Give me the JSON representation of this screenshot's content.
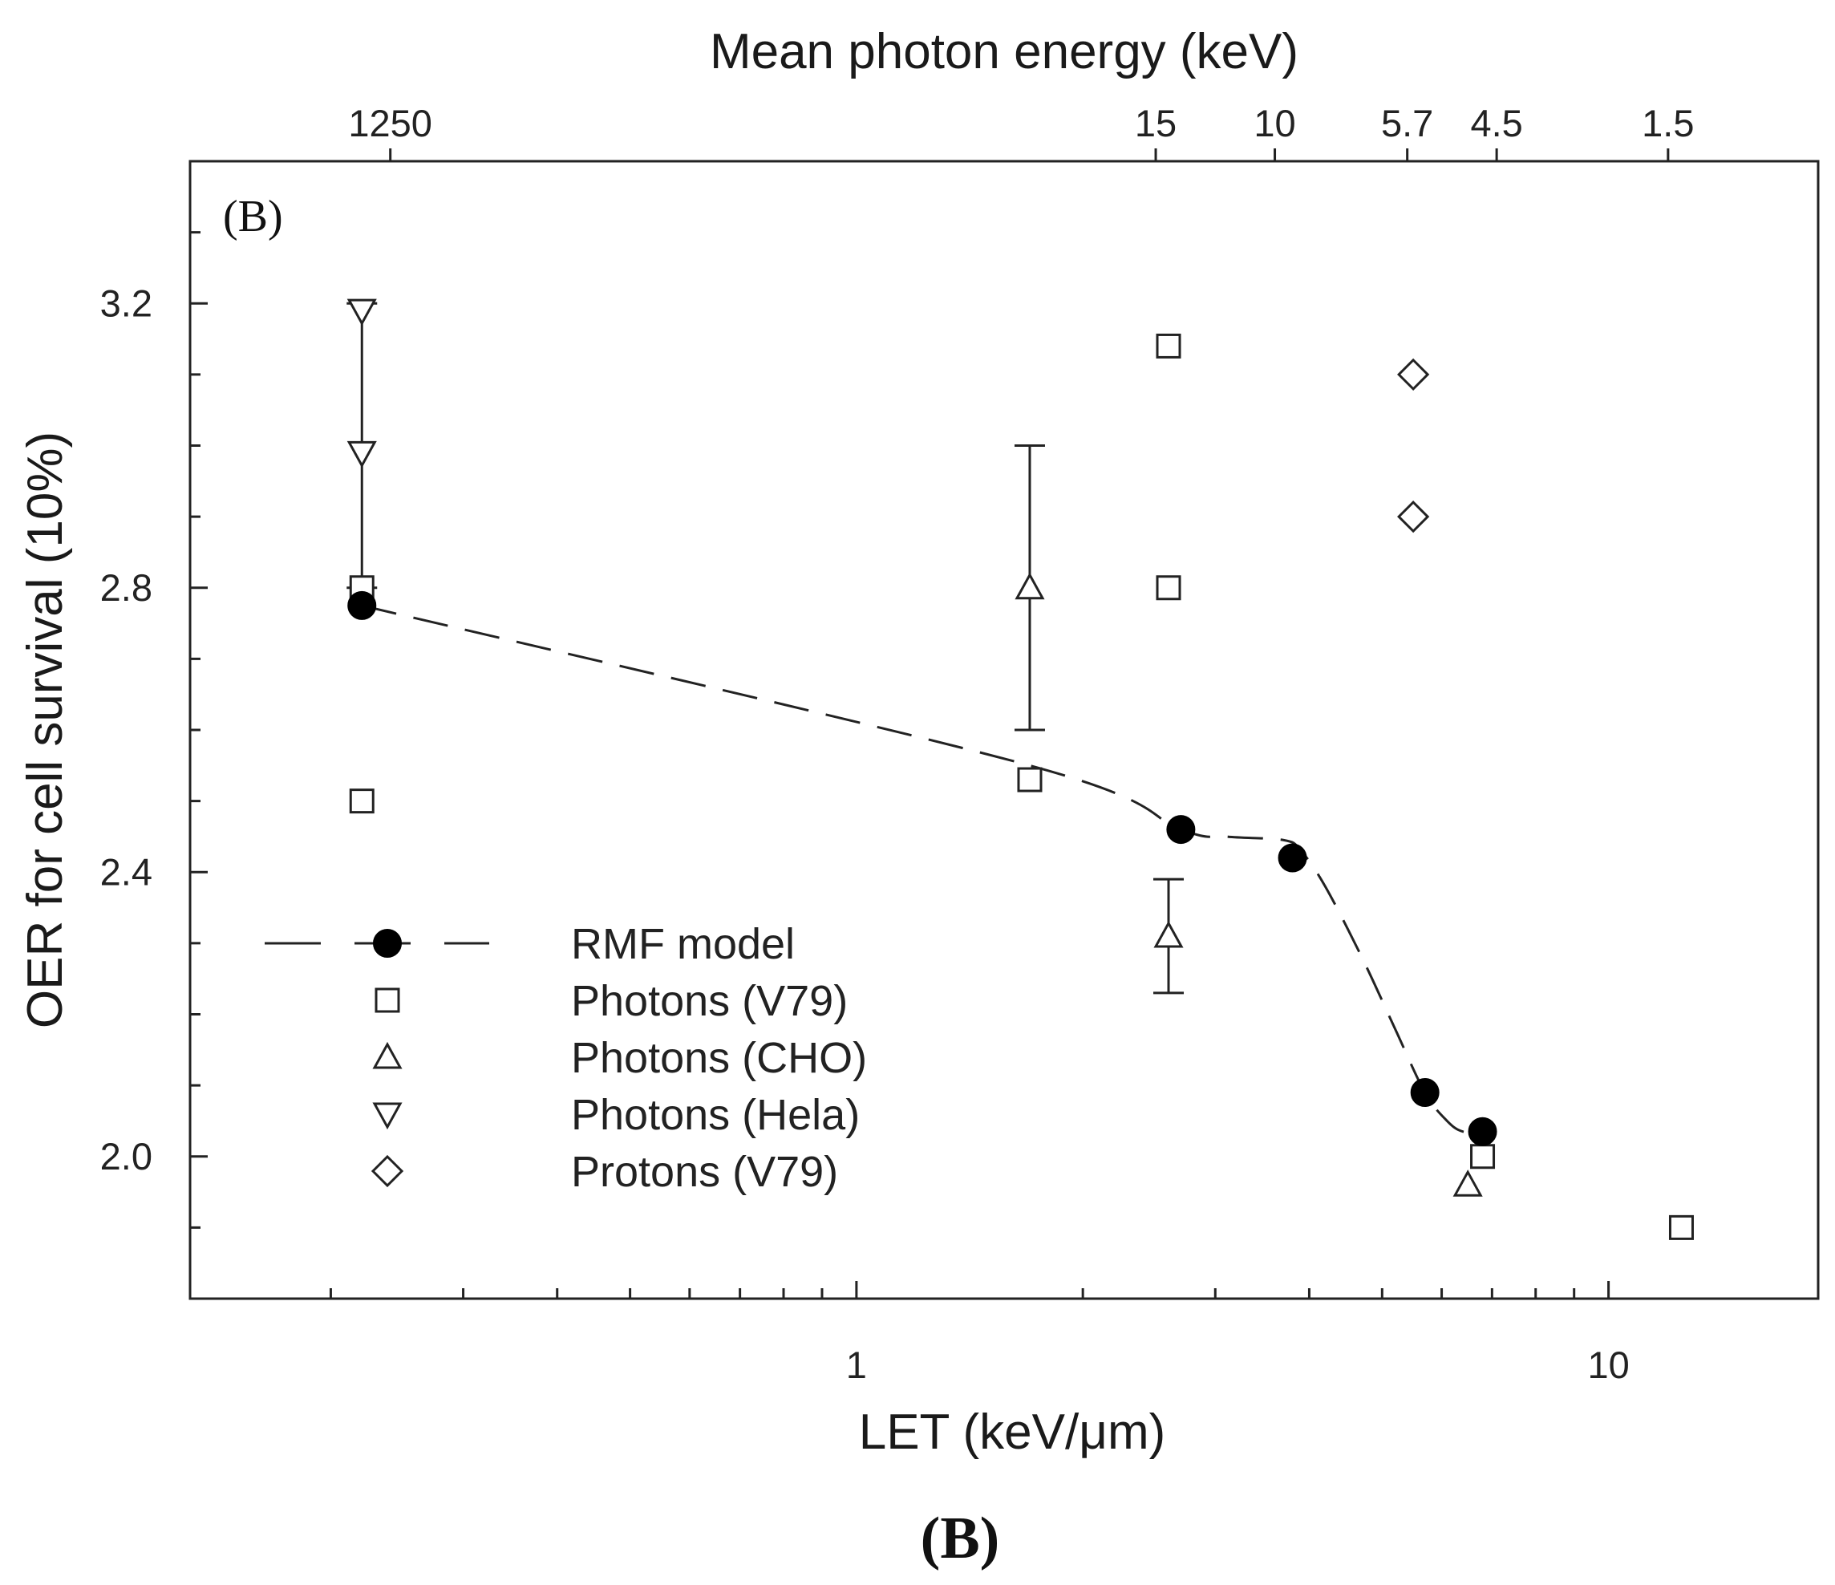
{
  "chart_data": {
    "type": "scatter",
    "panel_label": "(B)",
    "caption": "(B)",
    "xlabel": "LET (keV/μm)",
    "ylabel": "OER for cell survival (10%)",
    "top_axis_title": "Mean photon energy (keV)",
    "x_scale": "log",
    "xlim": [
      0.13,
      19
    ],
    "ylim": [
      1.8,
      3.4
    ],
    "x_ticks": [
      {
        "value": 1,
        "label": "1"
      },
      {
        "value": 10,
        "label": "10"
      }
    ],
    "y_ticks": [
      {
        "value": 2.0,
        "label": "2.0"
      },
      {
        "value": 2.4,
        "label": "2.4"
      },
      {
        "value": 2.8,
        "label": "2.8"
      },
      {
        "value": 3.2,
        "label": "3.2"
      }
    ],
    "top_ticks": [
      {
        "let": 0.24,
        "label": "1250"
      },
      {
        "let": 2.5,
        "label": "15"
      },
      {
        "let": 3.6,
        "label": "10"
      },
      {
        "let": 5.4,
        "label": "5.7"
      },
      {
        "let": 7.1,
        "label": "4.5"
      },
      {
        "let": 12.0,
        "label": "1.5"
      }
    ],
    "series": [
      {
        "name": "RMF model",
        "marker": "filled-circle",
        "line": "dashed",
        "points": [
          {
            "x": 0.22,
            "y": 2.775
          },
          {
            "x": 2.7,
            "y": 2.46
          },
          {
            "x": 3.8,
            "y": 2.42
          },
          {
            "x": 5.7,
            "y": 2.09
          },
          {
            "x": 6.8,
            "y": 2.035
          }
        ],
        "curve": [
          [
            0.22,
            2.775
          ],
          [
            1.7,
            2.55
          ],
          [
            2.7,
            2.46
          ],
          [
            3.1,
            2.45
          ],
          [
            3.7,
            2.445
          ],
          [
            3.9,
            2.43
          ],
          [
            4.2,
            2.38
          ],
          [
            4.7,
            2.28
          ],
          [
            5.2,
            2.18
          ],
          [
            5.7,
            2.09
          ],
          [
            6.1,
            2.05
          ],
          [
            6.4,
            2.035
          ],
          [
            6.8,
            2.035
          ]
        ]
      },
      {
        "name": "Photons (V79)",
        "marker": "open-square",
        "points": [
          {
            "x": 0.22,
            "y": 2.8
          },
          {
            "x": 0.22,
            "y": 2.5
          },
          {
            "x": 1.7,
            "y": 2.53
          },
          {
            "x": 2.6,
            "y": 3.14
          },
          {
            "x": 2.6,
            "y": 2.8
          },
          {
            "x": 6.8,
            "y": 2.0
          },
          {
            "x": 12.5,
            "y": 1.9
          }
        ]
      },
      {
        "name": "Photons (CHO)",
        "marker": "open-triangle-up",
        "points": [
          {
            "x": 1.7,
            "y": 2.8,
            "err_low": 2.6,
            "err_high": 3.0
          },
          {
            "x": 2.6,
            "y": 2.31,
            "err_low": 2.23,
            "err_high": 2.39
          },
          {
            "x": 6.5,
            "y": 1.96
          }
        ]
      },
      {
        "name": "Photons (Hela)",
        "marker": "open-triangle-down",
        "points": [
          {
            "x": 0.22,
            "y": 3.19
          },
          {
            "x": 0.22,
            "y": 2.99
          }
        ],
        "errorbar_span": {
          "x": 0.22,
          "low": 2.8,
          "high": 3.2
        }
      },
      {
        "name": "Protons (V79)",
        "marker": "open-diamond",
        "points": [
          {
            "x": 5.5,
            "y": 3.1
          },
          {
            "x": 5.5,
            "y": 2.9
          }
        ]
      }
    ],
    "legend": {
      "position": "lower-left",
      "entries": [
        {
          "label": "RMF model",
          "marker": "filled-circle",
          "line": "dashed"
        },
        {
          "label": "Photons (V79)",
          "marker": "open-square"
        },
        {
          "label": "Photons (CHO)",
          "marker": "open-triangle-up"
        },
        {
          "label": "Photons (Hela)",
          "marker": "open-triangle-down"
        },
        {
          "label": "Protons (V79)",
          "marker": "open-diamond"
        }
      ]
    }
  }
}
